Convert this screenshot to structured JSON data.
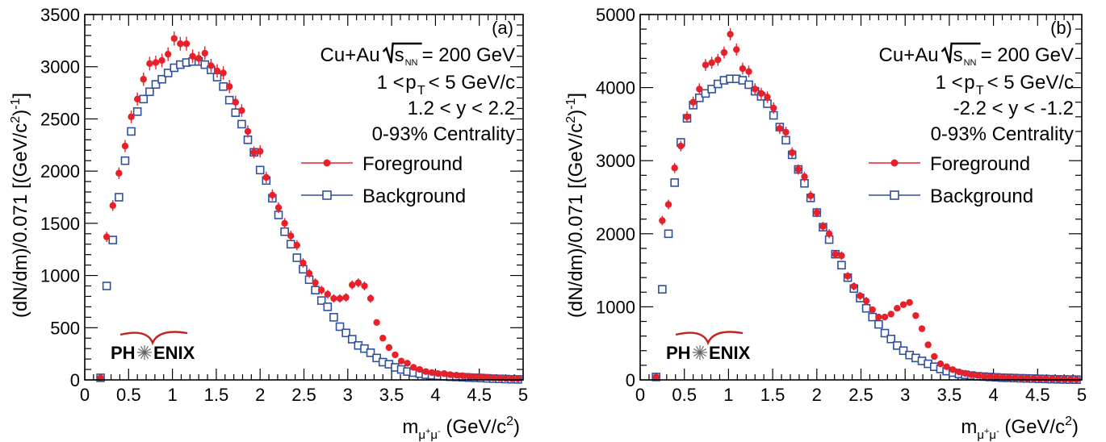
{
  "figure": {
    "panels": [
      {
        "id": "a",
        "panel_label": "(a)",
        "system": "Cu+Au",
        "energy": "= 200 GeV",
        "pt_range": "< 5 GeV/c",
        "y_range": "1.2 < y < 2.2",
        "centrality": "0-93% Centrality",
        "ylabel": "(dN/dm)/0.071 [(GeV/c",
        "xlabel_prefix": "m",
        "xlabel_suffix": " (GeV/c",
        "logo": "PH ENIX"
      },
      {
        "id": "b",
        "panel_label": "(b)",
        "system": "Cu+Au",
        "energy": "= 200 GeV",
        "pt_range": "< 5 GeV/c",
        "y_range": "-2.2 < y < -1.2",
        "centrality": "0-93% Centrality",
        "ylabel": "(dN/dm)/0.071 [(GeV/c",
        "xlabel_prefix": "m",
        "xlabel_suffix": " (GeV/c",
        "logo": "PH ENIX"
      }
    ]
  },
  "chart_data": [
    {
      "type": "scatter",
      "panel": "(a)",
      "xlabel": "m_{μ+μ-} (GeV/c^2)",
      "ylabel": "(dN/dm)/0.071 [(GeV/c^2)^-1]",
      "xlim": [
        0,
        5
      ],
      "ylim": [
        0,
        3500
      ],
      "xticks": [
        "0",
        "0.5",
        "1",
        "1.5",
        "2",
        "2.5",
        "3",
        "3.5",
        "4",
        "4.5",
        "5"
      ],
      "yticks": [
        "0",
        "500",
        "1000",
        "1500",
        "2000",
        "2500",
        "3000",
        "3500"
      ],
      "legend_position": "top-right",
      "series": [
        {
          "name": "Foreground",
          "color": "#e8202a",
          "marker": "filled-circle",
          "x": [
            0.18,
            0.25,
            0.32,
            0.39,
            0.46,
            0.53,
            0.6,
            0.67,
            0.74,
            0.81,
            0.88,
            0.95,
            1.02,
            1.09,
            1.16,
            1.23,
            1.3,
            1.37,
            1.44,
            1.51,
            1.58,
            1.65,
            1.72,
            1.79,
            1.86,
            1.93,
            2.0,
            2.07,
            2.14,
            2.21,
            2.28,
            2.35,
            2.42,
            2.49,
            2.56,
            2.63,
            2.7,
            2.77,
            2.84,
            2.91,
            2.98,
            3.05,
            3.12,
            3.19,
            3.26,
            3.33,
            3.4,
            3.47,
            3.54,
            3.61,
            3.68,
            3.75,
            3.82,
            3.89,
            3.96,
            4.03,
            4.1,
            4.17,
            4.24,
            4.31,
            4.38,
            4.45,
            4.52,
            4.59,
            4.66,
            4.73,
            4.8,
            4.87,
            4.94
          ],
          "y": [
            20,
            1370,
            1670,
            1980,
            2240,
            2520,
            2690,
            2880,
            3030,
            3040,
            3060,
            3120,
            3270,
            3220,
            3220,
            3100,
            3080,
            3130,
            3010,
            2960,
            2940,
            2810,
            2660,
            2580,
            2380,
            2180,
            2190,
            1940,
            1770,
            1650,
            1500,
            1380,
            1290,
            1120,
            1020,
            930,
            860,
            820,
            780,
            780,
            790,
            910,
            930,
            900,
            780,
            550,
            400,
            310,
            240,
            180,
            160,
            120,
            100,
            80,
            70,
            60,
            60,
            50,
            45,
            40,
            35,
            30,
            28,
            25,
            20,
            18,
            15,
            12,
            10
          ]
        },
        {
          "name": "Background",
          "color": "#2f4f9f",
          "marker": "open-square",
          "x": [
            0.18,
            0.25,
            0.32,
            0.39,
            0.46,
            0.53,
            0.6,
            0.67,
            0.74,
            0.81,
            0.88,
            0.95,
            1.02,
            1.09,
            1.16,
            1.23,
            1.3,
            1.37,
            1.44,
            1.51,
            1.58,
            1.65,
            1.72,
            1.79,
            1.86,
            1.93,
            2.0,
            2.07,
            2.14,
            2.21,
            2.28,
            2.35,
            2.42,
            2.49,
            2.56,
            2.63,
            2.7,
            2.77,
            2.84,
            2.91,
            2.98,
            3.05,
            3.12,
            3.19,
            3.26,
            3.33,
            3.4,
            3.47,
            3.54,
            3.61,
            3.68,
            3.75,
            3.82,
            3.89,
            3.96,
            4.03,
            4.1,
            4.17,
            4.24,
            4.31,
            4.38,
            4.45,
            4.52,
            4.59,
            4.66,
            4.73,
            4.8,
            4.87,
            4.94
          ],
          "y": [
            20,
            900,
            1340,
            1750,
            2100,
            2380,
            2570,
            2690,
            2760,
            2830,
            2880,
            2940,
            2990,
            3020,
            3040,
            3050,
            3050,
            3020,
            2970,
            2900,
            2810,
            2680,
            2560,
            2450,
            2300,
            2180,
            2010,
            1910,
            1740,
            1580,
            1420,
            1300,
            1170,
            1060,
            960,
            860,
            760,
            700,
            600,
            510,
            450,
            390,
            330,
            300,
            260,
            210,
            170,
            150,
            120,
            100,
            80,
            70,
            60,
            50,
            45,
            40,
            35,
            30,
            28,
            25,
            22,
            20,
            18,
            15,
            12,
            10,
            8,
            6,
            5
          ]
        }
      ]
    },
    {
      "type": "scatter",
      "panel": "(b)",
      "xlabel": "m_{μ+μ-} (GeV/c^2)",
      "ylabel": "(dN/dm)/0.071 [(GeV/c^2)^-1]",
      "xlim": [
        0,
        5
      ],
      "ylim": [
        0,
        5000
      ],
      "xticks": [
        "0",
        "0.5",
        "1",
        "1.5",
        "2",
        "2.5",
        "3",
        "3.5",
        "4",
        "4.5",
        "5"
      ],
      "yticks": [
        "0",
        "1000",
        "2000",
        "3000",
        "4000",
        "5000"
      ],
      "legend_position": "top-right",
      "series": [
        {
          "name": "Foreground",
          "color": "#e8202a",
          "marker": "filled-circle",
          "x": [
            0.18,
            0.25,
            0.32,
            0.39,
            0.46,
            0.53,
            0.6,
            0.67,
            0.74,
            0.81,
            0.88,
            0.95,
            1.02,
            1.09,
            1.16,
            1.23,
            1.3,
            1.37,
            1.44,
            1.51,
            1.58,
            1.65,
            1.72,
            1.79,
            1.86,
            1.93,
            2.0,
            2.07,
            2.14,
            2.21,
            2.28,
            2.35,
            2.42,
            2.49,
            2.56,
            2.63,
            2.7,
            2.77,
            2.84,
            2.91,
            2.98,
            3.05,
            3.12,
            3.19,
            3.26,
            3.33,
            3.4,
            3.47,
            3.54,
            3.61,
            3.68,
            3.75,
            3.82,
            3.89,
            3.96,
            4.03,
            4.1,
            4.17,
            4.24,
            4.31,
            4.38,
            4.45,
            4.52,
            4.59,
            4.66,
            4.73,
            4.8,
            4.87,
            4.94
          ],
          "y": [
            40,
            2180,
            2400,
            2900,
            3200,
            3600,
            3800,
            3980,
            4310,
            4340,
            4380,
            4480,
            4730,
            4520,
            4260,
            4220,
            3980,
            3920,
            3870,
            3720,
            3440,
            3390,
            3110,
            2880,
            2780,
            2520,
            2290,
            2100,
            2000,
            1720,
            1700,
            1420,
            1280,
            1150,
            1080,
            960,
            860,
            860,
            900,
            980,
            1030,
            1060,
            880,
            700,
            480,
            320,
            220,
            180,
            140,
            110,
            90,
            70,
            60,
            50,
            45,
            40,
            35,
            30,
            28,
            25,
            22,
            20,
            18,
            15,
            12,
            10,
            8,
            6,
            5
          ]
        },
        {
          "name": "Background",
          "color": "#2f4f9f",
          "marker": "open-square",
          "x": [
            0.18,
            0.25,
            0.32,
            0.39,
            0.46,
            0.53,
            0.6,
            0.67,
            0.74,
            0.81,
            0.88,
            0.95,
            1.02,
            1.09,
            1.16,
            1.23,
            1.3,
            1.37,
            1.44,
            1.51,
            1.58,
            1.65,
            1.72,
            1.79,
            1.86,
            1.93,
            2.0,
            2.07,
            2.14,
            2.21,
            2.28,
            2.35,
            2.42,
            2.49,
            2.56,
            2.63,
            2.7,
            2.77,
            2.84,
            2.91,
            2.98,
            3.05,
            3.12,
            3.19,
            3.26,
            3.33,
            3.4,
            3.47,
            3.54,
            3.61,
            3.68,
            3.75,
            3.82,
            3.89,
            3.96,
            4.03,
            4.1,
            4.17,
            4.24,
            4.31,
            4.38,
            4.45,
            4.52,
            4.59,
            4.66,
            4.73,
            4.8,
            4.87,
            4.94
          ],
          "y": [
            40,
            1240,
            2000,
            2700,
            3250,
            3580,
            3760,
            3860,
            3920,
            3980,
            4050,
            4100,
            4120,
            4120,
            4100,
            4040,
            3950,
            3880,
            3780,
            3620,
            3460,
            3280,
            3080,
            2880,
            2690,
            2490,
            2290,
            2090,
            1920,
            1720,
            1570,
            1400,
            1250,
            1120,
            980,
            860,
            760,
            640,
            560,
            470,
            400,
            340,
            300,
            260,
            220,
            180,
            150,
            120,
            100,
            80,
            70,
            60,
            50,
            45,
            40,
            35,
            30,
            28,
            25,
            22,
            20,
            18,
            15,
            12,
            10,
            8,
            6,
            5,
            4
          ]
        }
      ]
    }
  ]
}
